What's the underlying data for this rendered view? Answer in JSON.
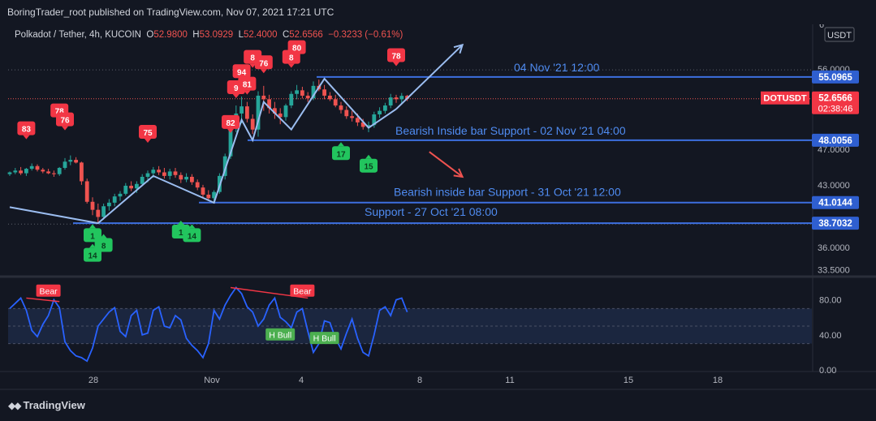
{
  "publisher_line": "BoringTrader_root published on TradingView.com, Nov 07, 2021 17:21 UTC",
  "footer_brand": "TradingView",
  "colors": {
    "background": "#131722",
    "bull": "#26a69a",
    "bear": "#ef5350",
    "level_line": "#3d6fe0",
    "annotation_text": "#4f8bf0",
    "swing_line": "#9bbdf0",
    "rsi_line": "#2962ff",
    "signal_red": "#f23645",
    "signal_green": "#22c55e",
    "hbull_green": "#4caf50"
  },
  "chart_data": {
    "type": "candlestick",
    "symbol": "Polkadot / Tether, 4h, KUCOIN",
    "ohlc": {
      "o_label": "O",
      "o": "52.9800",
      "h_label": "H",
      "h": "53.0929",
      "l_label": "L",
      "l": "52.4000",
      "c_label": "C",
      "c": "52.6566",
      "change": "−0.3233 (−0.61%)"
    },
    "currency": "USDT",
    "price_axis_ticks": [
      "6",
      "56.0000",
      "47.0000",
      "43.0000",
      "36.0000",
      "33.5000"
    ],
    "time_axis_ticks": [
      "28",
      "Nov",
      "4",
      "8",
      "11",
      "15",
      "18"
    ],
    "ylim": [
      32.8,
      61
    ],
    "current_price": {
      "symbol": "DOTUSDT",
      "price": "52.6566",
      "countdown": "02:38:46"
    },
    "levels": [
      {
        "price": 55.0965,
        "label": "55.0965",
        "annotation": "04 Nov '21 12:00"
      },
      {
        "price": 48.0056,
        "label": "48.0056",
        "annotation": "Bearish Inside bar Support - 02 Nov '21 04:00"
      },
      {
        "price": 41.0144,
        "label": "41.0144",
        "annotation": "Bearish inside bar Support - 31 Oct '21 12:00"
      },
      {
        "price": 38.7032,
        "label": "38.7032",
        "annotation": "Support - 27 Oct '21 08:00"
      }
    ],
    "candles": [
      [
        44.2,
        44.5,
        44.0,
        44.4
      ],
      [
        44.4,
        44.9,
        44.2,
        44.6
      ],
      [
        44.6,
        45.0,
        44.1,
        44.3
      ],
      [
        44.3,
        44.9,
        44.0,
        44.8
      ],
      [
        44.8,
        45.4,
        44.6,
        45.1
      ],
      [
        45.1,
        45.3,
        44.5,
        44.7
      ],
      [
        44.7,
        44.9,
        44.3,
        44.5
      ],
      [
        44.5,
        44.8,
        44.2,
        44.3
      ],
      [
        44.3,
        44.6,
        43.9,
        44.2
      ],
      [
        44.2,
        45.0,
        44.0,
        44.9
      ],
      [
        44.9,
        46.0,
        44.7,
        45.6
      ],
      [
        45.6,
        46.3,
        45.2,
        45.8
      ],
      [
        45.8,
        46.1,
        45.4,
        45.5
      ],
      [
        45.5,
        45.6,
        43.0,
        43.4
      ],
      [
        43.4,
        43.7,
        40.9,
        41.1
      ],
      [
        41.1,
        41.6,
        39.6,
        40.2
      ],
      [
        40.2,
        40.9,
        38.7,
        39.4
      ],
      [
        39.4,
        40.9,
        39.1,
        40.6
      ],
      [
        40.6,
        41.4,
        40.1,
        41.0
      ],
      [
        41.0,
        42.0,
        40.6,
        41.7
      ],
      [
        41.7,
        42.3,
        41.2,
        42.0
      ],
      [
        42.0,
        43.2,
        41.8,
        42.9
      ],
      [
        42.9,
        43.4,
        42.3,
        42.6
      ],
      [
        42.6,
        43.4,
        42.1,
        43.1
      ],
      [
        43.1,
        44.2,
        42.9,
        43.9
      ],
      [
        43.9,
        44.6,
        43.3,
        44.3
      ],
      [
        44.3,
        45.0,
        43.8,
        44.7
      ],
      [
        44.7,
        45.1,
        44.1,
        44.4
      ],
      [
        44.4,
        44.9,
        43.7,
        44.0
      ],
      [
        44.0,
        44.8,
        43.6,
        44.5
      ],
      [
        44.5,
        44.9,
        43.8,
        44.1
      ],
      [
        44.1,
        44.4,
        43.2,
        43.6
      ],
      [
        43.6,
        44.3,
        43.3,
        43.9
      ],
      [
        43.9,
        44.2,
        43.0,
        43.3
      ],
      [
        43.3,
        43.6,
        42.4,
        42.7
      ],
      [
        42.7,
        43.0,
        41.5,
        41.9
      ],
      [
        41.9,
        42.4,
        41.2,
        41.5
      ],
      [
        41.5,
        42.4,
        41.0,
        42.2
      ],
      [
        42.2,
        44.3,
        42.0,
        44.0
      ],
      [
        44.0,
        46.5,
        43.6,
        46.2
      ],
      [
        46.2,
        50.5,
        45.9,
        50.0
      ],
      [
        50.0,
        51.9,
        48.9,
        51.0
      ],
      [
        51.0,
        52.9,
        49.9,
        51.8
      ],
      [
        51.8,
        52.3,
        50.0,
        50.4
      ],
      [
        50.4,
        50.9,
        48.7,
        49.2
      ],
      [
        49.2,
        53.5,
        48.4,
        53.0
      ],
      [
        53.0,
        54.1,
        51.3,
        52.6
      ],
      [
        52.6,
        53.1,
        51.0,
        51.6
      ],
      [
        51.6,
        52.3,
        50.4,
        51.0
      ],
      [
        51.0,
        51.6,
        49.8,
        50.6
      ],
      [
        50.6,
        52.1,
        50.2,
        51.9
      ],
      [
        51.9,
        53.5,
        51.6,
        53.2
      ],
      [
        53.2,
        54.2,
        52.6,
        53.6
      ],
      [
        53.6,
        54.0,
        52.7,
        53.0
      ],
      [
        53.0,
        53.4,
        52.3,
        52.7
      ],
      [
        52.7,
        54.6,
        52.5,
        54.1
      ],
      [
        54.1,
        54.8,
        53.5,
        53.7
      ],
      [
        53.7,
        54.2,
        52.6,
        53.0
      ],
      [
        53.0,
        53.4,
        52.4,
        52.6
      ],
      [
        52.6,
        53.1,
        51.7,
        51.9
      ],
      [
        51.9,
        52.3,
        51.0,
        51.4
      ],
      [
        51.4,
        51.8,
        50.4,
        50.7
      ],
      [
        50.7,
        51.3,
        50.1,
        50.5
      ],
      [
        50.5,
        51.0,
        49.6,
        50.0
      ],
      [
        50.0,
        50.4,
        49.2,
        49.5
      ],
      [
        49.5,
        50.1,
        48.9,
        49.7
      ],
      [
        49.7,
        51.2,
        49.4,
        50.9
      ],
      [
        50.9,
        51.7,
        50.5,
        51.3
      ],
      [
        51.3,
        52.2,
        51.0,
        51.9
      ],
      [
        51.9,
        53.2,
        51.6,
        52.8
      ],
      [
        52.8,
        53.1,
        52.2,
        52.6
      ],
      [
        52.6,
        53.3,
        52.1,
        52.98
      ],
      [
        52.98,
        53.09,
        52.4,
        52.66
      ]
    ],
    "swing_path": [
      [
        0,
        40.5
      ],
      [
        16,
        38.7
      ],
      [
        26,
        44.0
      ],
      [
        37,
        41.0
      ],
      [
        42,
        50.3
      ],
      [
        44,
        48.0
      ],
      [
        46,
        52.3
      ],
      [
        51,
        49.2
      ],
      [
        57,
        54.9
      ],
      [
        65,
        49.4
      ],
      [
        70,
        51.5
      ]
    ],
    "arrow_up": {
      "from": [
        70,
        51.5
      ],
      "to": [
        82,
        58.7
      ]
    },
    "arrow_down": {
      "from": [
        76,
        46.7
      ],
      "to": [
        82,
        43.9
      ]
    },
    "signals_bear": [
      {
        "text": "83",
        "i": 3,
        "price": 49.3
      },
      {
        "text": "78",
        "i": 9,
        "price": 51.3
      },
      {
        "text": "76",
        "i": 10,
        "price": 50.3
      },
      {
        "text": "75",
        "i": 25,
        "price": 48.9
      },
      {
        "text": "82",
        "i": 40,
        "price": 50.0
      },
      {
        "text": "9",
        "i": 41,
        "price": 53.9
      },
      {
        "text": "94",
        "i": 42,
        "price": 55.7
      },
      {
        "text": "81",
        "i": 43,
        "price": 54.3
      },
      {
        "text": "8",
        "i": 44,
        "price": 57.3
      },
      {
        "text": "76",
        "i": 46,
        "price": 56.7
      },
      {
        "text": "8",
        "i": 51,
        "price": 57.3
      },
      {
        "text": "80",
        "i": 52,
        "price": 58.4
      },
      {
        "text": "78",
        "i": 70,
        "price": 57.5
      }
    ],
    "signals_bull": [
      {
        "text": "1",
        "i": 15,
        "price": 37.4
      },
      {
        "text": "8",
        "i": 17,
        "price": 36.3
      },
      {
        "text": "14",
        "i": 15,
        "price": 35.2
      },
      {
        "text": "1",
        "i": 31,
        "price": 37.8
      },
      {
        "text": "14",
        "i": 33,
        "price": 37.4
      },
      {
        "text": "17",
        "i": 60,
        "price": 46.6
      },
      {
        "text": "15",
        "i": 65,
        "price": 45.2
      }
    ],
    "rsi": {
      "ticks": [
        "80.00",
        "40.00",
        "0.00"
      ],
      "overbought": 70,
      "oversold": 30,
      "mid": 50,
      "values": [
        70,
        76,
        82,
        68,
        45,
        38,
        52,
        62,
        80,
        71,
        32,
        22,
        16,
        14,
        10,
        25,
        50,
        58,
        66,
        71,
        44,
        38,
        62,
        68,
        40,
        42,
        68,
        72,
        50,
        48,
        62,
        57,
        36,
        28,
        22,
        14,
        30,
        68,
        58,
        74,
        85,
        94,
        87,
        72,
        66,
        50,
        58,
        74,
        82,
        60,
        55,
        48,
        66,
        70,
        44,
        20,
        30,
        56,
        54,
        36,
        24,
        42,
        58,
        36,
        20,
        16,
        40,
        68,
        72,
        62,
        80,
        82,
        66
      ],
      "tags": [
        {
          "text": "Bear",
          "i": 7,
          "value": 90,
          "type": "bear"
        },
        {
          "text": "Bear",
          "i": 53,
          "value": 90,
          "type": "bear"
        },
        {
          "text": "H Bull",
          "i": 49,
          "value": 40,
          "type": "bull"
        },
        {
          "text": "H Bull",
          "i": 57,
          "value": 36,
          "type": "bull"
        }
      ],
      "divergences": [
        {
          "from": [
            3,
            82
          ],
          "to": [
            9,
            78
          ]
        },
        {
          "from": [
            40,
            94
          ],
          "to": [
            54,
            82
          ]
        }
      ]
    }
  }
}
